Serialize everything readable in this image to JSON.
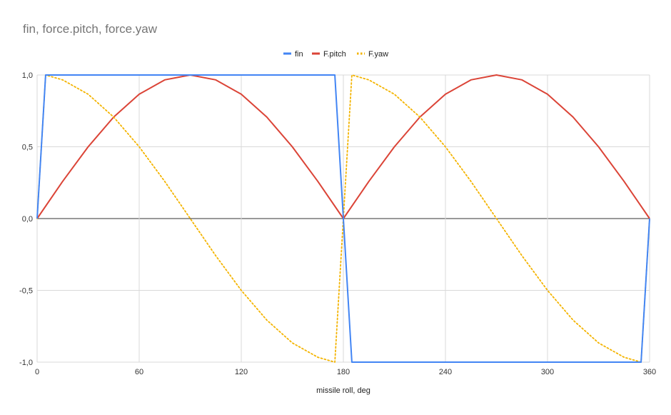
{
  "chart_data": {
    "type": "line",
    "title": "fin, force.pitch, force.yaw",
    "xlabel": "missile roll, deg",
    "ylabel": "",
    "xlim": [
      0,
      360
    ],
    "ylim": [
      -1.0,
      1.0
    ],
    "x_ticks": [
      0,
      60,
      120,
      180,
      240,
      300,
      360
    ],
    "y_ticks": [
      1.0,
      0.5,
      0.0,
      -0.5,
      -1.0
    ],
    "x_tick_labels": [
      "0",
      "60",
      "120",
      "180",
      "240",
      "300",
      "360"
    ],
    "y_tick_labels": [
      "1,0",
      "0,5",
      "0,0",
      "-0,5",
      "-1,0"
    ],
    "grid": true,
    "legend_position": "top-center",
    "series": [
      {
        "name": "fin",
        "color": "#4285F4",
        "style": "solid",
        "x": [
          0,
          5,
          175,
          180,
          185,
          355,
          360
        ],
        "y": [
          0,
          1,
          1,
          0,
          -1,
          -1,
          0
        ]
      },
      {
        "name": "F.pitch",
        "color": "#DB4437",
        "style": "solid",
        "x": [
          0,
          15,
          30,
          45,
          60,
          75,
          90,
          105,
          120,
          135,
          150,
          165,
          180,
          195,
          210,
          225,
          240,
          255,
          270,
          285,
          300,
          315,
          330,
          345,
          360
        ],
        "y": [
          0,
          0.259,
          0.5,
          0.707,
          0.866,
          0.966,
          1,
          0.966,
          0.866,
          0.707,
          0.5,
          0.259,
          0,
          0.259,
          0.5,
          0.707,
          0.866,
          0.966,
          1,
          0.966,
          0.866,
          0.707,
          0.5,
          0.259,
          0
        ]
      },
      {
        "name": "F.yaw",
        "color": "#F4B400",
        "style": "dotted",
        "x": [
          0,
          5,
          15,
          30,
          45,
          60,
          75,
          90,
          105,
          120,
          135,
          150,
          165,
          175,
          180,
          185,
          195,
          210,
          225,
          240,
          255,
          270,
          285,
          300,
          315,
          330,
          345,
          355,
          360
        ],
        "y": [
          0,
          1,
          0.966,
          0.866,
          0.707,
          0.5,
          0.259,
          0,
          -0.259,
          -0.5,
          -0.707,
          -0.866,
          -0.966,
          -1,
          0,
          1,
          0.966,
          0.866,
          0.707,
          0.5,
          0.259,
          0,
          -0.259,
          -0.5,
          -0.707,
          -0.866,
          -0.966,
          -1,
          0
        ]
      }
    ]
  },
  "colors": {
    "grid": "#d9d9d9",
    "zero_line": "#333333",
    "title": "#757575"
  }
}
